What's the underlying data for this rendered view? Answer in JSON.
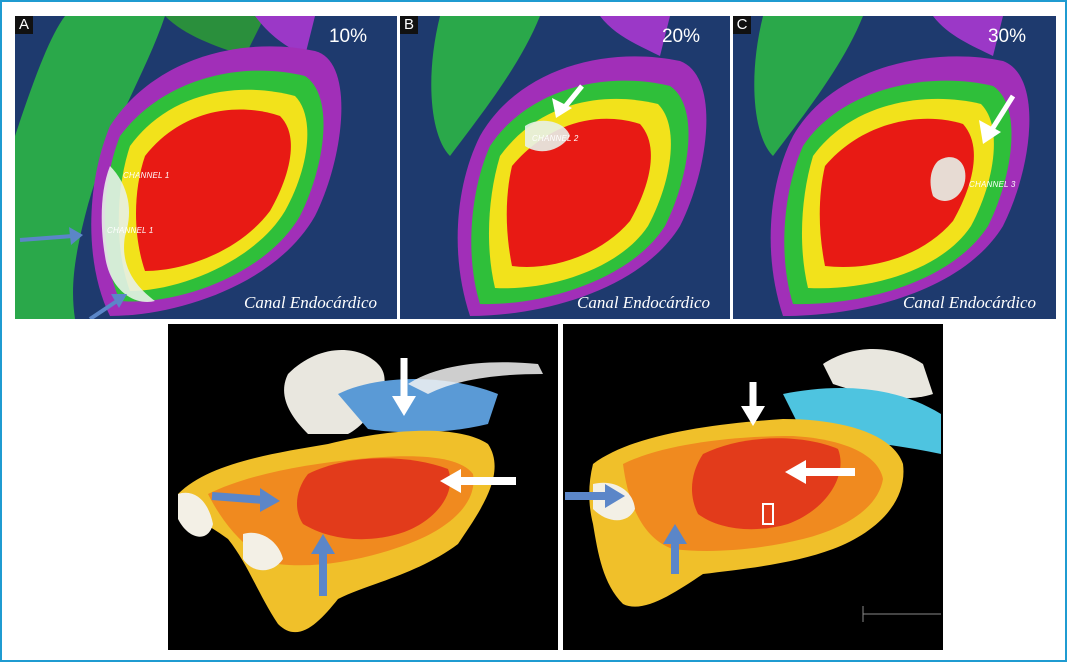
{
  "panels": [
    {
      "letter": "A",
      "percent": "10%",
      "caption": "Canal Endocárdico",
      "channels": [
        "CHANNEL 1",
        "CHANNEL 1"
      ]
    },
    {
      "letter": "B",
      "percent": "20%",
      "caption": "Canal Endocárdico",
      "channels": [
        "CHANNEL 2"
      ]
    },
    {
      "letter": "C",
      "percent": "30%",
      "caption": "Canal Endocárdico",
      "channels": [
        "CHANNEL 3"
      ]
    }
  ],
  "colors": {
    "frame_border": "#1f9bd1",
    "map_background": "#1e3a6e",
    "scar_red": "#e81a14",
    "healthy_purple": "#a12fb8",
    "border_zone_green": "#2fbf3a",
    "arrow_blue": "#5b86c8",
    "arrow_white": "#ffffff"
  },
  "icons": [
    "arrow-icon"
  ]
}
